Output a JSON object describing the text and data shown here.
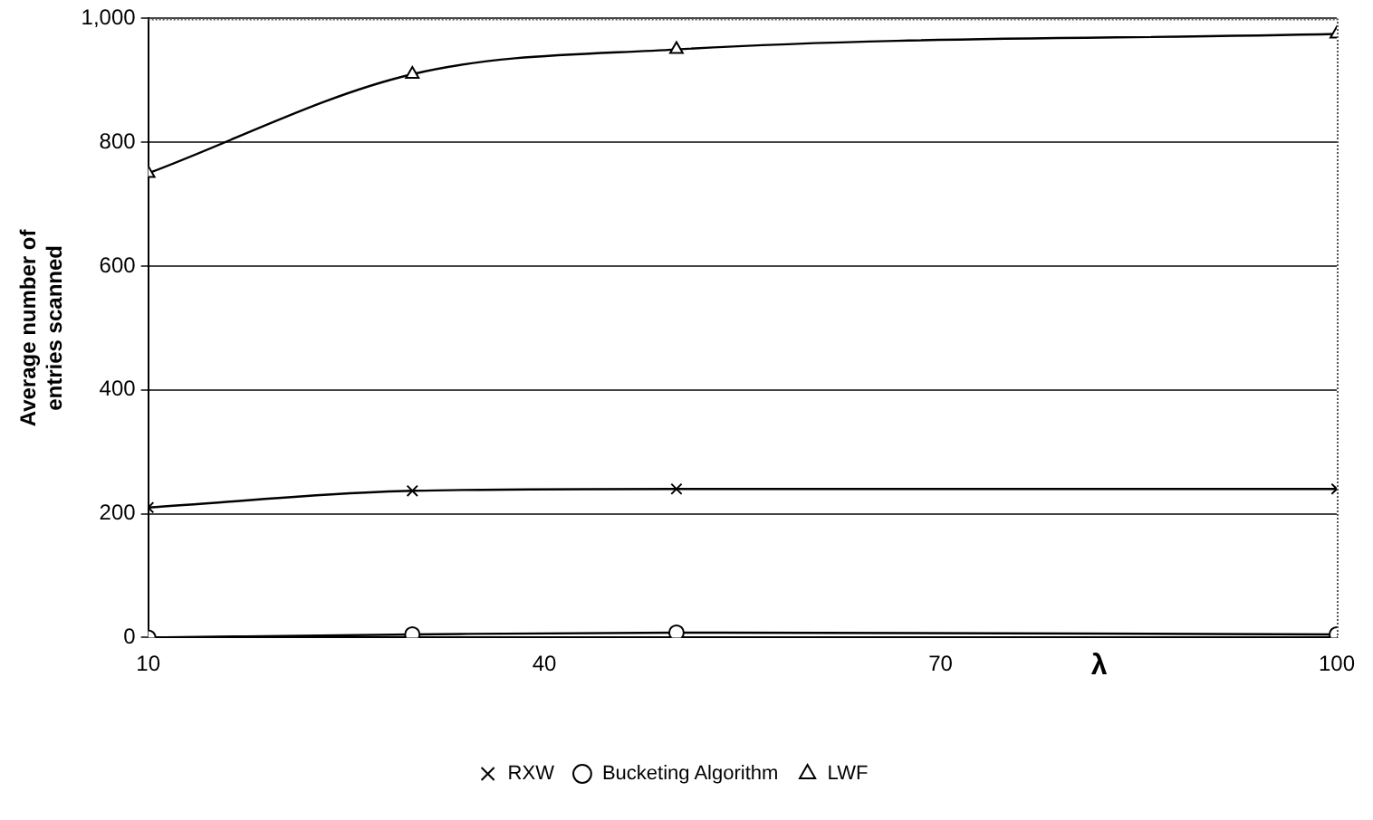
{
  "chart_data": {
    "type": "line",
    "xlabel": "λ",
    "ylabel": "Average number of entries scanned",
    "x": [
      10,
      30,
      50,
      100
    ],
    "series": [
      {
        "name": "RXW",
        "color": "#000000",
        "marker": "cross",
        "values": [
          210,
          237,
          240,
          240
        ]
      },
      {
        "name": "Bucketing Algorithm",
        "color": "#000000",
        "marker": "circle",
        "values": [
          0,
          5,
          8,
          5
        ]
      },
      {
        "name": "LWF",
        "color": "#000000",
        "marker": "triangle",
        "values": [
          750,
          910,
          950,
          975
        ]
      }
    ],
    "xlim": [
      10,
      100
    ],
    "xticks": [
      10,
      40,
      70,
      100
    ],
    "ylim": [
      0,
      1000
    ],
    "yticks": [
      0,
      200,
      400,
      600,
      800,
      {
        "value": 1000,
        "label": "1,000"
      }
    ],
    "grid": "y",
    "legend": "bottom",
    "line_style": "solid"
  }
}
